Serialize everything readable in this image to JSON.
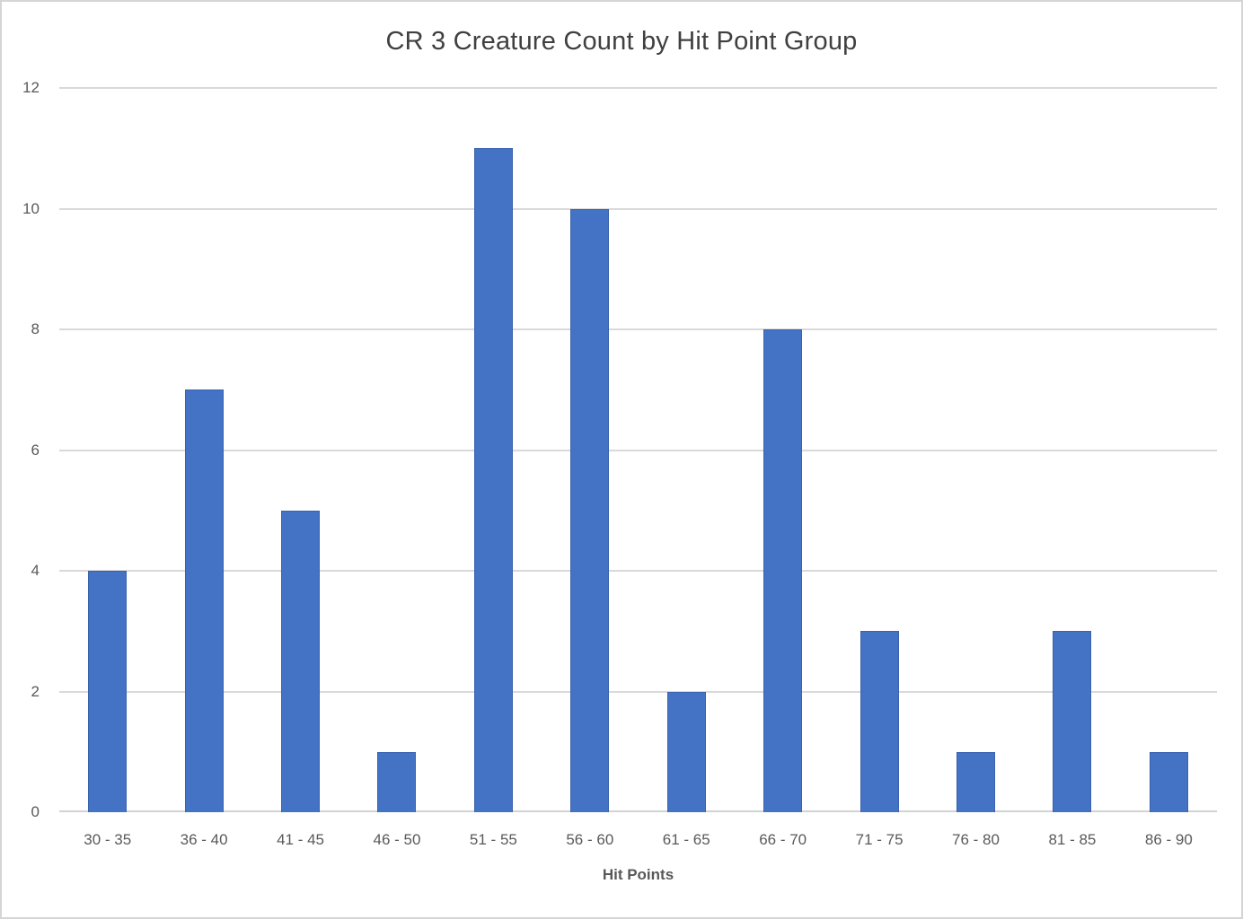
{
  "chart_data": {
    "type": "bar",
    "title": "CR 3 Creature Count by Hit Point Group",
    "xlabel": "Hit Points",
    "ylabel": "",
    "categories": [
      "30 - 35",
      "36 - 40",
      "41 - 45",
      "46 - 50",
      "51 - 55",
      "56 - 60",
      "61 - 65",
      "66 - 70",
      "71 - 75",
      "76 - 80",
      "81 - 85",
      "86 - 90"
    ],
    "values": [
      4,
      7,
      5,
      1,
      11,
      10,
      2,
      8,
      3,
      1,
      3,
      1
    ],
    "ylim": [
      0,
      12
    ],
    "yticks": [
      0,
      2,
      4,
      6,
      8,
      10,
      12
    ],
    "grid": true,
    "legend": false,
    "colors": {
      "bar_fill": "#4472c4",
      "bar_border": "#3a62ae",
      "gridline": "#d9d9d9",
      "axis_line": "#d4d2d2",
      "title_text": "#404040",
      "tick_text": "#595959",
      "canvas_border": "#d6d4d4"
    }
  }
}
